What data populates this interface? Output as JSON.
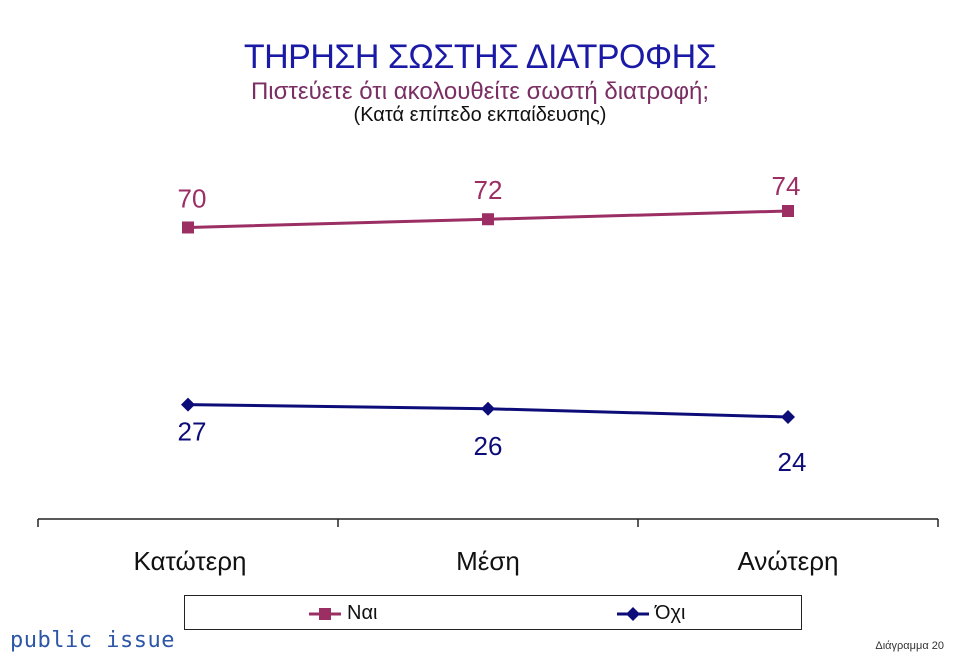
{
  "header": {
    "title": "ΤΗΡΗΣΗ ΣΩΣΤΗΣ ΔΙΑΤΡΟΦΗΣ",
    "subtitle": "Πιστεύετε ότι ακολουθείτε σωστή διατροφή;",
    "note": "(Κατά επίπεδο εκπαίδευσης)"
  },
  "chart_data": {
    "type": "line",
    "title": "ΤΗΡΗΣΗ ΣΩΣΤΗΣ ΔΙΑΤΡΟΦΗΣ",
    "categories": [
      "Κατώτερη",
      "Μέση",
      "Ανώτερη"
    ],
    "series": [
      {
        "name": "Ναι",
        "values": [
          70,
          72,
          74
        ],
        "color": "#9b2e63",
        "marker": "square"
      },
      {
        "name": "Όχι",
        "values": [
          27,
          26,
          24
        ],
        "color": "#0d0d7a",
        "marker": "diamond"
      }
    ],
    "ylim": [
      20,
      80
    ],
    "grid": false,
    "legend_position": "bottom"
  },
  "legend": {
    "items": [
      "Ναι",
      "Όχι"
    ]
  },
  "footer": {
    "brand": "public issue",
    "label": "Διάγραμμα 20"
  }
}
